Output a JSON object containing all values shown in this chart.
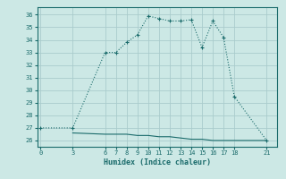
{
  "xlabel": "Humidex (Indice chaleur)",
  "bg_color": "#cce8e5",
  "line_color": "#1a6b6b",
  "grid_color": "#aacccc",
  "x_ticks": [
    0,
    3,
    6,
    7,
    8,
    9,
    10,
    11,
    12,
    13,
    14,
    15,
    16,
    17,
    18,
    21
  ],
  "y_ticks": [
    26,
    27,
    28,
    29,
    30,
    31,
    32,
    33,
    34,
    35,
    36
  ],
  "ylim": [
    25.5,
    36.6
  ],
  "xlim": [
    -0.3,
    22.0
  ],
  "line1_x": [
    0,
    3,
    6,
    7,
    8,
    9,
    10,
    11,
    12,
    13,
    14,
    15,
    16,
    17,
    18,
    21
  ],
  "line1_y": [
    27.0,
    27.0,
    33.0,
    33.0,
    33.8,
    34.4,
    35.9,
    35.7,
    35.5,
    35.5,
    35.6,
    33.4,
    35.5,
    34.2,
    29.5,
    26.0
  ],
  "line2_x": [
    3,
    6,
    7,
    8,
    9,
    10,
    11,
    12,
    13,
    14,
    15,
    16,
    17,
    18,
    21
  ],
  "line2_y": [
    26.6,
    26.5,
    26.5,
    26.5,
    26.4,
    26.4,
    26.3,
    26.3,
    26.2,
    26.1,
    26.1,
    26.0,
    26.0,
    26.0,
    26.0
  ]
}
